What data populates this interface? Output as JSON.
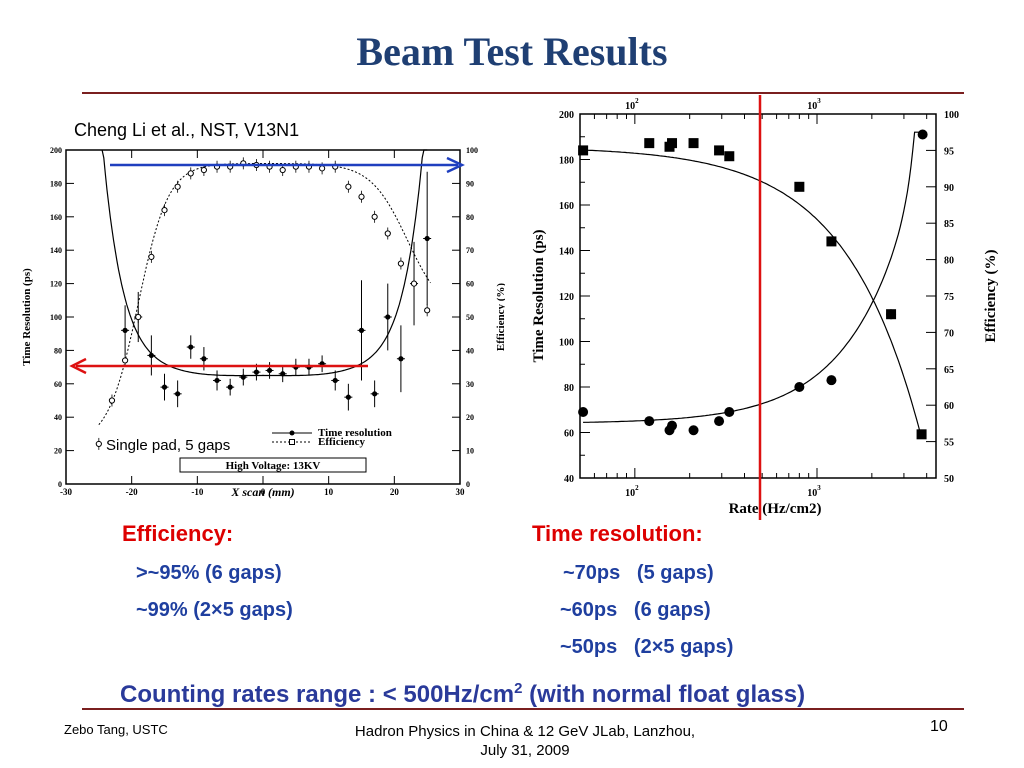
{
  "slide": {
    "title": "Beam Test Results",
    "citation": "Cheng Li et al., NST, V13N1",
    "efficiency": {
      "heading": "Efficiency:",
      "items": [
        ">~95% (6 gaps)",
        "~99% (2×5 gaps)"
      ]
    },
    "time_resolution": {
      "heading": "Time resolution:",
      "items": [
        "~70ps   (5 gaps)",
        "~60ps   (6 gaps)",
        "~50ps   (2×5 gaps)"
      ]
    },
    "summary": {
      "text": "Counting rates range : < 500Hz/cm",
      "sup": "2",
      "tail": " (with normal float glass)"
    },
    "footer": {
      "author": "Zebo Tang, USTC",
      "event_line1": "Hadron Physics in China & 12 GeV JLab, Lanzhou,",
      "event_line2": "July 31, 2009",
      "page": "10"
    }
  },
  "chart_data": [
    {
      "type": "scatter",
      "xlabel": "X scan (mm)",
      "ylabel": "Time Resolution (ps)",
      "y2label": "Efficiency (%)",
      "xlim": [
        -30,
        30
      ],
      "ylim": [
        0,
        200
      ],
      "y2lim": [
        0,
        100
      ],
      "xticks": [
        -30,
        -20,
        -10,
        0,
        10,
        20,
        30
      ],
      "yticks": [
        0,
        20,
        40,
        60,
        80,
        100,
        120,
        140,
        160,
        180,
        200
      ],
      "y2ticks": [
        0,
        10,
        20,
        30,
        40,
        50,
        60,
        70,
        80,
        90,
        100
      ],
      "legend": [
        "Time resolution",
        "Efficiency"
      ],
      "annotations": [
        "Single pad, 5 gaps",
        "High Voltage: 13KV"
      ],
      "series": [
        {
          "name": "Time resolution",
          "axis": "left",
          "marker": "filled-circle",
          "x": [
            -21,
            -19,
            -17,
            -15,
            -13,
            -11,
            -9,
            -7,
            -5,
            -3,
            -1,
            1,
            3,
            5,
            7,
            9,
            11,
            13,
            15,
            17,
            19,
            21,
            23,
            25
          ],
          "y": [
            92,
            100,
            77,
            58,
            54,
            82,
            75,
            62,
            58,
            64,
            67,
            68,
            66,
            70,
            70,
            72,
            62,
            52,
            92,
            54,
            100,
            75,
            120,
            147
          ],
          "err": [
            15,
            15,
            12,
            8,
            8,
            7,
            7,
            6,
            5,
            5,
            5,
            5,
            5,
            5,
            5,
            5,
            6,
            8,
            30,
            8,
            20,
            20,
            25,
            40
          ]
        },
        {
          "name": "Efficiency",
          "axis": "right",
          "marker": "open-circle",
          "x": [
            -25,
            -23,
            -21,
            -19,
            -17,
            -15,
            -13,
            -11,
            -9,
            -7,
            -5,
            -3,
            -1,
            1,
            3,
            5,
            7,
            9,
            11,
            13,
            15,
            17,
            19,
            21,
            23,
            25
          ],
          "y": [
            12,
            25,
            37,
            50,
            68,
            82,
            89,
            93,
            94,
            95,
            95,
            96,
            95.5,
            95,
            94,
            95,
            95,
            94.5,
            95,
            89,
            86,
            80,
            75,
            66,
            60,
            52
          ]
        }
      ]
    },
    {
      "type": "scatter",
      "xlabel": "Rate (Hz/cm2)",
      "ylabel": "Time Resolution (ps)",
      "y2label": "Efficiency (%)",
      "xscale": "log",
      "xlim": [
        50,
        4500
      ],
      "ylim": [
        40,
        200
      ],
      "y2lim": [
        50,
        100
      ],
      "xticks": [
        100,
        1000
      ],
      "yticks": [
        40,
        60,
        80,
        100,
        120,
        140,
        160,
        180,
        200
      ],
      "y2ticks": [
        50,
        55,
        60,
        65,
        70,
        75,
        80,
        85,
        90,
        95,
        100
      ],
      "series": [
        {
          "name": "Efficiency",
          "axis": "right",
          "marker": "filled-square",
          "x": [
            52,
            120,
            155,
            160,
            210,
            290,
            330,
            800,
            1200,
            2550,
            3750
          ],
          "y": [
            95,
            96,
            95.5,
            96,
            96,
            95,
            94.2,
            90,
            82.5,
            72.5,
            56
          ]
        },
        {
          "name": "Time resolution",
          "axis": "left",
          "marker": "filled-circle",
          "x": [
            52,
            120,
            155,
            160,
            210,
            290,
            330,
            800,
            1200,
            2550,
            3800
          ],
          "y": [
            69,
            65,
            61,
            63,
            61,
            65,
            69,
            80,
            83,
            112,
            191
          ]
        }
      ]
    }
  ]
}
